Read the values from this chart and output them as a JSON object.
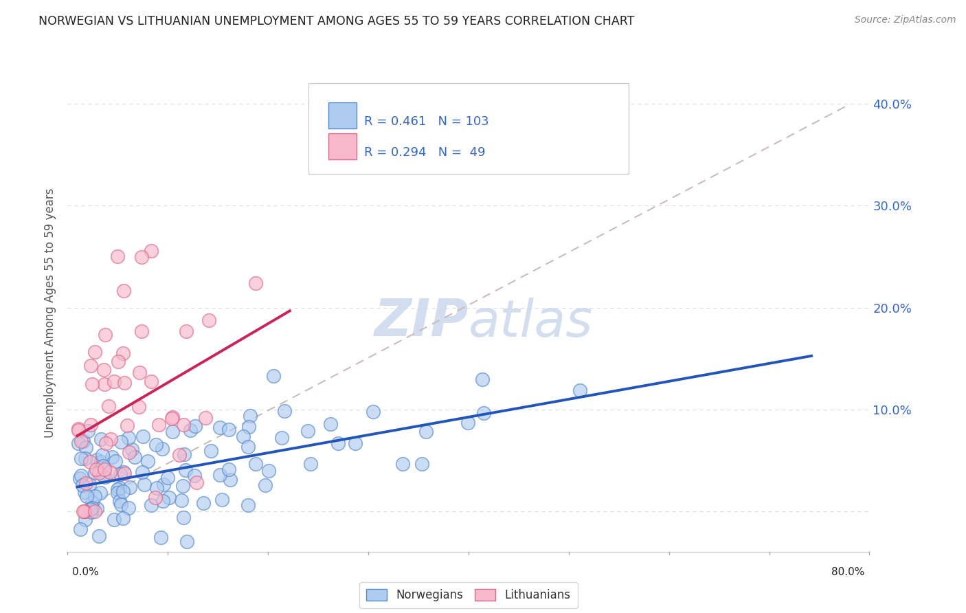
{
  "title": "NORWEGIAN VS LITHUANIAN UNEMPLOYMENT AMONG AGES 55 TO 59 YEARS CORRELATION CHART",
  "source": "Source: ZipAtlas.com",
  "ylabel": "Unemployment Among Ages 55 to 59 years",
  "xlim": [
    -0.01,
    0.82
  ],
  "ylim": [
    -0.04,
    0.43
  ],
  "yticks": [
    0.0,
    0.1,
    0.2,
    0.3,
    0.4
  ],
  "ytick_labels": [
    "",
    "10.0%",
    "20.0%",
    "30.0%",
    "40.0%"
  ],
  "norwegian_R": 0.461,
  "norwegian_N": 103,
  "lithuanian_R": 0.294,
  "lithuanian_N": 49,
  "norwegian_color": "#aecbf0",
  "norwegian_edge_color": "#5588cc",
  "norwegian_line_color": "#2255bb",
  "lithuanian_color": "#f8b8cc",
  "lithuanian_edge_color": "#dd6688",
  "lithuanian_line_color": "#cc2255",
  "ref_line_color": "#ccbbbb",
  "grid_color": "#dddddd",
  "background_color": "#ffffff",
  "watermark_color": "#ccd8ee",
  "title_color": "#222222",
  "source_color": "#888888",
  "ylabel_color": "#555555",
  "ytick_color": "#3366cc",
  "xlabel_color": "#222222",
  "legend_text_color": "#333333",
  "stats_value_color": "#3366cc"
}
